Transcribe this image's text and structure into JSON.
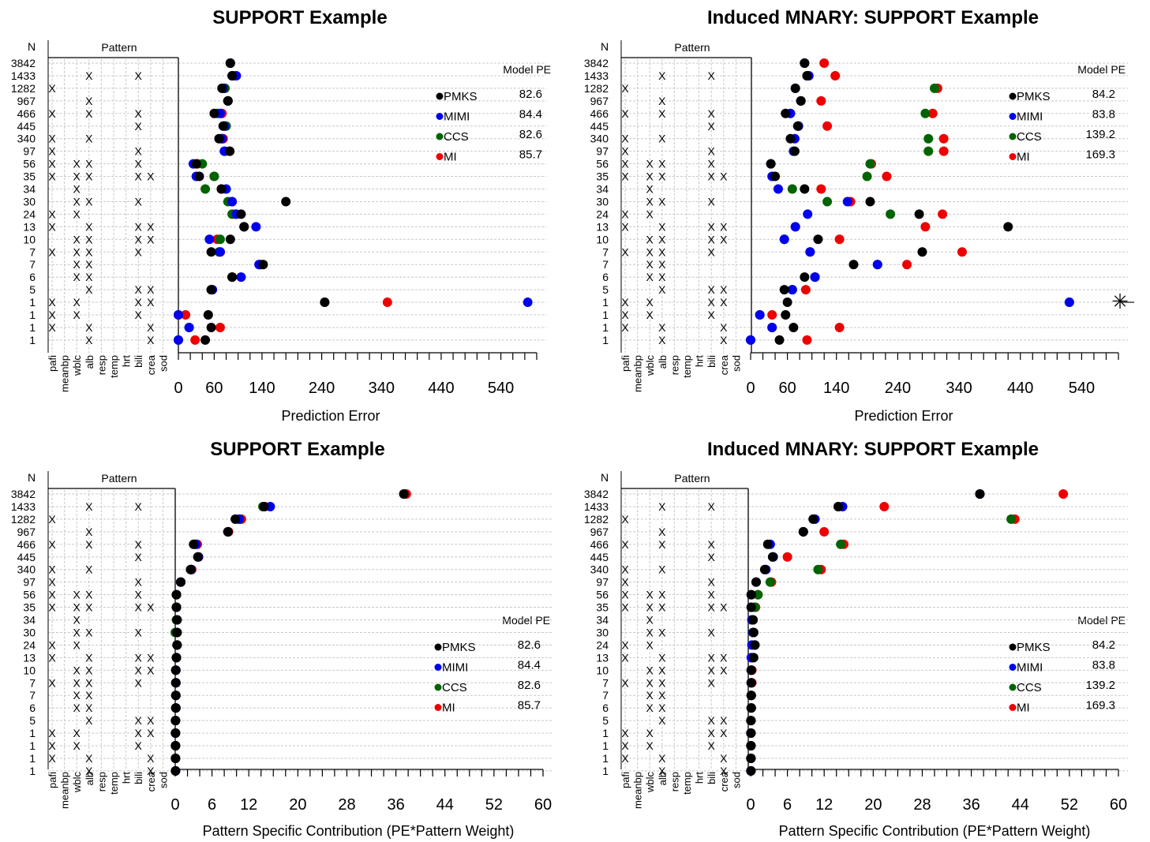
{
  "colors": {
    "PMKS": "#000000",
    "MIMI": "#0000ee",
    "CCS": "#006400",
    "MI": "#ee0000"
  },
  "common": {
    "n_label": "N",
    "pattern_label": "Pattern",
    "variables": [
      "pafi",
      "meanbp",
      "wblc",
      "alb",
      "resp",
      "temp",
      "hrt",
      "bili",
      "crea",
      "sod"
    ],
    "n_values": [
      "3842",
      "1433",
      "1282",
      "967",
      "466",
      "445",
      "340",
      "97",
      "56",
      "35",
      "34",
      "30",
      "24",
      "13",
      "10",
      "7",
      "7",
      "6",
      "5",
      "1",
      "1",
      "1",
      "1"
    ],
    "pattern_marks": [
      [],
      [
        3,
        7
      ],
      [
        0
      ],
      [
        3
      ],
      [
        0,
        3,
        7
      ],
      [
        7
      ],
      [
        0,
        3
      ],
      [
        0,
        7
      ],
      [
        0,
        2,
        3,
        7
      ],
      [
        0,
        2,
        3,
        7,
        8
      ],
      [
        2
      ],
      [
        2,
        3,
        7
      ],
      [
        0,
        2
      ],
      [
        0,
        3,
        7,
        8
      ],
      [
        2,
        3,
        7,
        8
      ],
      [
        0,
        2,
        3,
        7
      ],
      [
        2,
        3
      ],
      [
        2,
        3
      ],
      [
        3,
        7,
        8
      ],
      [
        0,
        2,
        7,
        8
      ],
      [
        0,
        2,
        7
      ],
      [
        0,
        3,
        8
      ],
      [
        3,
        8
      ]
    ],
    "legend_header": "Model PE",
    "mark_char": "X"
  },
  "chart_data": [
    {
      "type": "scatter",
      "title": "SUPPORT Example",
      "xlabel": "Prediction Error",
      "xlim": [
        0,
        600
      ],
      "xticks": [
        0,
        60,
        140,
        240,
        340,
        440,
        540
      ],
      "legend": {
        "header": "Model PE",
        "entries": [
          {
            "name": "PMKS",
            "pe": "82.6"
          },
          {
            "name": "MIMI",
            "pe": "84.4"
          },
          {
            "name": "CCS",
            "pe": "82.6"
          },
          {
            "name": "MI",
            "pe": "85.7"
          }
        ]
      },
      "series": [
        {
          "name": "PMKS",
          "values": [
            87,
            90,
            73,
            83,
            60,
            75,
            68,
            86,
            30,
            35,
            72,
            180,
            105,
            110,
            87,
            55,
            142,
            90,
            55,
            245,
            50,
            55,
            45
          ]
        },
        {
          "name": "MIMI",
          "values": [
            87,
            97,
            75,
            83,
            70,
            77,
            73,
            77,
            25,
            30,
            80,
            90,
            97,
            130,
            52,
            70,
            135,
            105,
            57,
            585,
            0,
            18,
            0
          ]
        },
        {
          "name": "CCS",
          "values": [
            87,
            90,
            78,
            83,
            65,
            80,
            72,
            78,
            40,
            60,
            45,
            83,
            90,
            110,
            70,
            68,
            138,
            90,
            55,
            245,
            0,
            18,
            0
          ]
        },
        {
          "name": "MI",
          "values": [
            87,
            93,
            78,
            83,
            73,
            78,
            75,
            86,
            32,
            60,
            72,
            90,
            95,
            110,
            65,
            70,
            137,
            90,
            56,
            350,
            12,
            70,
            28
          ]
        }
      ],
      "annotation": ""
    },
    {
      "type": "scatter",
      "title": "Induced MNARY: SUPPORT Example",
      "xlabel": "Prediction Error",
      "xlim": [
        0,
        600
      ],
      "xticks": [
        0,
        60,
        140,
        240,
        340,
        440,
        540
      ],
      "legend": {
        "header": "Model PE",
        "entries": [
          {
            "name": "PMKS",
            "pe": "84.2"
          },
          {
            "name": "MIMI",
            "pe": "83.8"
          },
          {
            "name": "CCS",
            "pe": "139.2"
          },
          {
            "name": "MI",
            "pe": "169.3"
          }
        ]
      },
      "series": [
        {
          "name": "PMKS",
          "values": [
            88,
            92,
            73,
            82,
            57,
            77,
            65,
            72,
            33,
            40,
            88,
            195,
            275,
            420,
            110,
            280,
            168,
            88,
            55,
            60,
            57,
            70,
            47
          ]
        },
        {
          "name": "MIMI",
          "values": [
            88,
            95,
            73,
            82,
            65,
            78,
            72,
            70,
            33,
            35,
            45,
            158,
            93,
            73,
            55,
            97,
            207,
            105,
            68,
            520,
            15,
            35,
            0
          ]
        },
        {
          "name": "CCS",
          "values": [
            88,
            92,
            300,
            82,
            285,
            78,
            290,
            290,
            195,
            190,
            68,
            125,
            228,
            73,
            55,
            97,
            207,
            105,
            68,
            520,
            15,
            35,
            0
          ]
        },
        {
          "name": "MI",
          "values": [
            120,
            138,
            305,
            115,
            297,
            125,
            315,
            315,
            197,
            222,
            115,
            163,
            313,
            285,
            145,
            345,
            255,
            105,
            90,
            610,
            35,
            145,
            92
          ]
        }
      ],
      "annotation": "✳"
    },
    {
      "type": "scatter",
      "title": "SUPPORT Example",
      "xlabel": "Pattern Specific Contribution (PE*Pattern Weight)",
      "xlim": [
        0,
        60
      ],
      "xticks": [
        0,
        6,
        12,
        20,
        28,
        36,
        44,
        52,
        60
      ],
      "legend": {
        "header": "Model PE",
        "entries": [
          {
            "name": "PMKS",
            "pe": "82.6"
          },
          {
            "name": "MIMI",
            "pe": "84.4"
          },
          {
            "name": "CCS",
            "pe": "82.6"
          },
          {
            "name": "MI",
            "pe": "85.7"
          }
        ]
      },
      "series": [
        {
          "name": "PMKS",
          "values": [
            37.3,
            14.5,
            9.8,
            8.6,
            3.0,
            3.7,
            2.5,
            0.9,
            0.2,
            0.2,
            0.3,
            0.3,
            0.3,
            0.2,
            0.1,
            0.1,
            0.1,
            0.1,
            0.05,
            0.05,
            0.05,
            0.05,
            0.05
          ]
        },
        {
          "name": "MIMI",
          "values": [
            37.3,
            15.5,
            10.4,
            8.6,
            3.4,
            3.8,
            2.6,
            0.9,
            0.2,
            0.2,
            0.3,
            0.3,
            0.3,
            0.2,
            0.1,
            0.1,
            0.1,
            0.1,
            0.05,
            0.05,
            0.05,
            0.05,
            0.05
          ]
        },
        {
          "name": "CCS",
          "values": [
            37.3,
            14.3,
            10.5,
            8.6,
            3.2,
            3.7,
            2.6,
            0.9,
            0.2,
            0.2,
            0.2,
            0.0,
            0.3,
            0.2,
            0.1,
            0.1,
            0.1,
            0.1,
            0.05,
            0.05,
            0.05,
            0.05,
            0.05
          ]
        },
        {
          "name": "MI",
          "values": [
            37.7,
            14.6,
            10.8,
            8.7,
            3.6,
            3.8,
            2.7,
            0.9,
            0.2,
            0.2,
            0.3,
            0.3,
            0.3,
            0.2,
            0.1,
            0.1,
            0.1,
            0.1,
            0.05,
            0.05,
            0.05,
            0.05,
            0.05
          ]
        }
      ],
      "annotation": ""
    },
    {
      "type": "scatter",
      "title": "Induced MNARY: SUPPORT Example",
      "xlabel": "Pattern Specific Contribution (PE*Pattern Weight)",
      "xlim": [
        0,
        60
      ],
      "xticks": [
        0,
        6,
        12,
        20,
        28,
        36,
        44,
        52,
        60
      ],
      "legend": {
        "header": "Model PE",
        "entries": [
          {
            "name": "PMKS",
            "pe": "84.2"
          },
          {
            "name": "MIMI",
            "pe": "83.8"
          },
          {
            "name": "CCS",
            "pe": "139.2"
          },
          {
            "name": "MI",
            "pe": "169.3"
          }
        ]
      },
      "series": [
        {
          "name": "PMKS",
          "values": [
            37.4,
            14.3,
            10.2,
            8.6,
            2.8,
            3.6,
            2.3,
            0.9,
            0.1,
            0.1,
            0.4,
            0.5,
            0.7,
            0.5,
            0.1,
            0.1,
            0.1,
            0.1,
            0.05,
            0.05,
            0.05,
            0.05,
            0.05
          ]
        },
        {
          "name": "MIMI",
          "values": [
            37.4,
            15.0,
            10.5,
            8.6,
            3.2,
            3.7,
            2.5,
            0.9,
            0.1,
            0.1,
            0.2,
            0.4,
            0.2,
            0.1,
            0.1,
            0.1,
            0.1,
            0.1,
            0.05,
            0.05,
            0.05,
            0.05,
            0.05
          ]
        },
        {
          "name": "CCS",
          "values": [
            37.4,
            14.3,
            42.5,
            8.6,
            14.7,
            3.6,
            11.0,
            3.2,
            1.2,
            0.7,
            0.2,
            0.4,
            0.6,
            0.2,
            0.1,
            0.1,
            0.1,
            0.1,
            0.05,
            0.05,
            0.05,
            0.05,
            0.05
          ]
        },
        {
          "name": "MI",
          "values": [
            51.0,
            21.8,
            43.1,
            12.0,
            15.2,
            6.0,
            11.5,
            3.4,
            1.2,
            0.8,
            0.4,
            0.5,
            0.7,
            0.3,
            0.2,
            0.2,
            0.1,
            0.1,
            0.05,
            0.05,
            0.05,
            0.05,
            0.05
          ]
        }
      ],
      "annotation": ""
    }
  ]
}
